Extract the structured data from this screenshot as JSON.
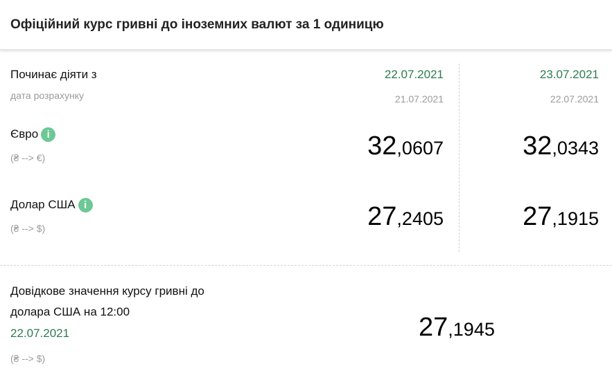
{
  "title": "Офіційний курс гривні до іноземних валют за 1 одиницю",
  "effective_label": "Починає діяти з",
  "calc_label": "дата розрахунку",
  "columns": [
    {
      "effective": "22.07.2021",
      "calc": "21.07.2021"
    },
    {
      "effective": "23.07.2021",
      "calc": "22.07.2021"
    }
  ],
  "currencies": [
    {
      "name": "Євро",
      "direction": "(₴ --> €)",
      "rates": [
        {
          "int": "32",
          "frac": ",0607"
        },
        {
          "int": "32",
          "frac": ",0343"
        }
      ]
    },
    {
      "name": "Долар США",
      "direction": "(₴ --> $)",
      "rates": [
        {
          "int": "27",
          "frac": ",2405"
        },
        {
          "int": "27",
          "frac": ",1915"
        }
      ]
    }
  ],
  "info_icon": "i",
  "reference": {
    "line1": "Довідкове значення курсу гривні до",
    "line2": "долара США на 12:00",
    "date": "22.07.2021",
    "direction": "(₴ --> $)",
    "int": "27",
    "frac": ",1945"
  },
  "colors": {
    "green": "#2d7b4f",
    "info": "#6cc894"
  }
}
